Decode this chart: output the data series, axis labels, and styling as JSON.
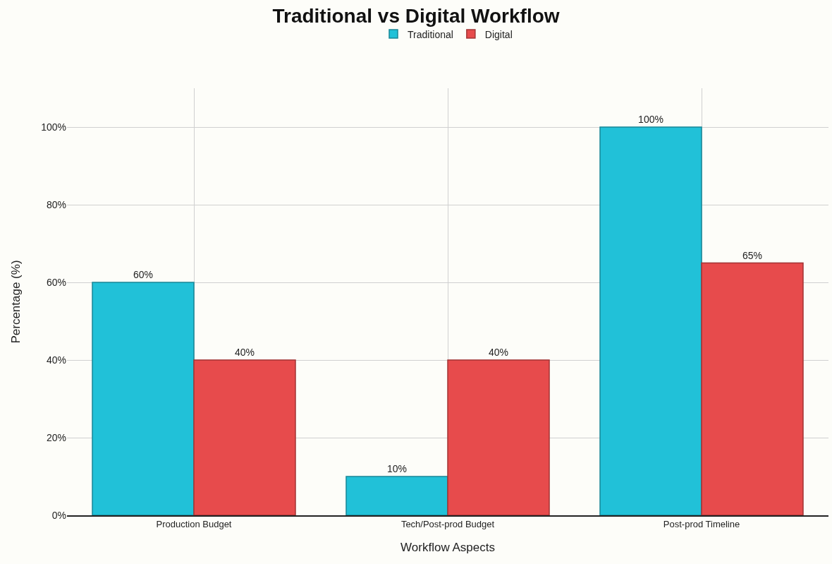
{
  "chart_data": {
    "type": "bar",
    "title": "Traditional vs Digital Workflow",
    "xlabel": "Workflow Aspects",
    "ylabel": "Percentage (%)",
    "categories": [
      "Production Budget",
      "Tech/Post-prod Budget",
      "Post-prod Timeline"
    ],
    "series": [
      {
        "name": "Traditional",
        "color": "#21c1d8",
        "values": [
          60,
          10,
          100
        ],
        "value_labels": [
          "60%",
          "10%",
          "100%"
        ]
      },
      {
        "name": "Digital",
        "color": "#e74b4c",
        "values": [
          40,
          40,
          65
        ],
        "value_labels": [
          "40%",
          "40%",
          "65%"
        ]
      }
    ],
    "ylim": [
      0,
      110
    ],
    "yticks": [
      {
        "value": 0,
        "label": "0%"
      },
      {
        "value": 20,
        "label": "20%"
      },
      {
        "value": 40,
        "label": "40%"
      },
      {
        "value": 60,
        "label": "60%"
      },
      {
        "value": 80,
        "label": "80%"
      },
      {
        "value": 100,
        "label": "100%"
      }
    ],
    "grid": true,
    "legend": "top"
  }
}
